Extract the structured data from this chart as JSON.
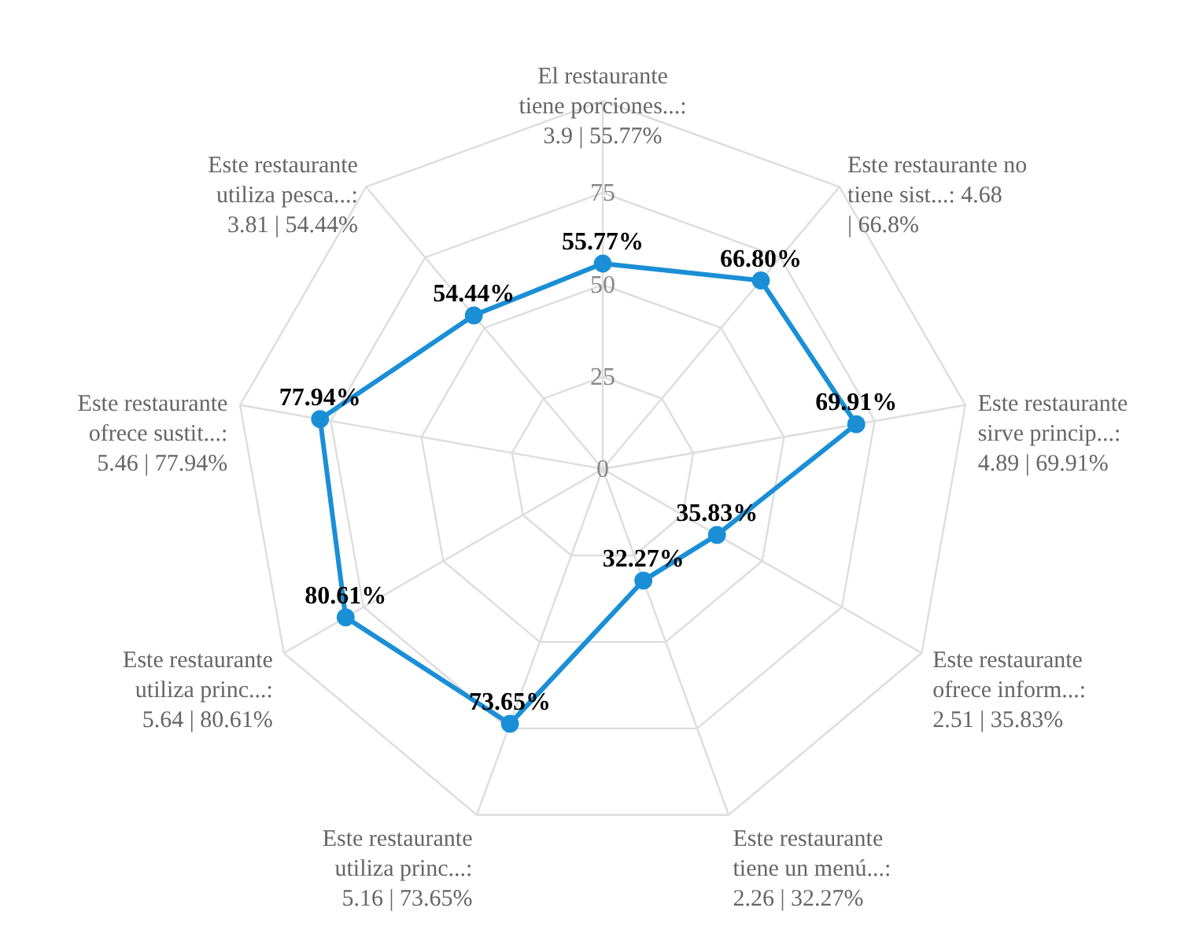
{
  "chart_data": {
    "type": "radar",
    "categories": [
      "El restaurante tiene porciones...: 3.9 | 55.77%",
      "Este restaurante no tiene sist...: 4.68 | 66.8%",
      "Este restaurante sirve princip...: 4.89 | 69.91%",
      "Este restaurante ofrece inform...: 2.51 | 35.83%",
      "Este restaurante tiene un menú...: 2.26 | 32.27%",
      "Este restaurante utiliza princ...: 5.16 | 73.65%",
      "Este restaurante utiliza princ...: 5.64 | 80.61%",
      "Este restaurante ofrece sustit...: 5.46 | 77.94%",
      "Este restaurante utiliza pesca...: 3.81 | 54.44%"
    ],
    "series": [
      {
        "color": "#1a8fd6",
        "values": [
          55.77,
          66.8,
          69.91,
          35.83,
          32.27,
          73.65,
          80.61,
          77.94,
          54.44
        ],
        "value_labels": [
          "55.77%",
          "66.80%",
          "69.91%",
          "35.83%",
          "32.27%",
          "73.65%",
          "80.61%",
          "77.94%",
          "54.44%"
        ]
      }
    ],
    "ylim": [
      0,
      100
    ],
    "yticks": [
      0,
      25,
      50,
      75
    ],
    "grid": true,
    "marker": "circle",
    "line_style": "solid"
  }
}
